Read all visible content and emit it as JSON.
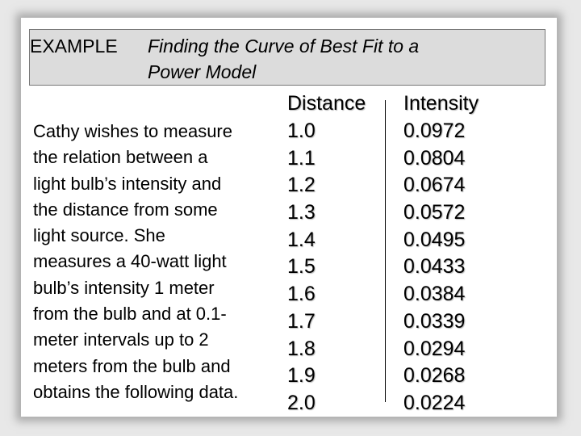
{
  "title": {
    "prefix": "EXAMPLE",
    "line1": "Finding the Curve of Best Fit to a",
    "line2": "Power Model"
  },
  "description_lines": [
    "Cathy wishes to measure",
    "the relation between a",
    "light bulb’s intensity and",
    "the distance from some",
    "light source.  She",
    "measures a 40-watt light",
    "bulb’s intensity 1 meter",
    "from the bulb and at 0.1-",
    "meter intervals up to 2",
    "meters from the bulb and",
    "obtains the following data."
  ],
  "table": {
    "headers": {
      "distance": "Distance",
      "intensity": "Intensity"
    },
    "rows": [
      {
        "distance": "1.0",
        "intensity": "0.0972"
      },
      {
        "distance": "1.1",
        "intensity": "0.0804"
      },
      {
        "distance": "1.2",
        "intensity": "0.0674"
      },
      {
        "distance": "1.3",
        "intensity": "0.0572"
      },
      {
        "distance": "1.4",
        "intensity": "0.0495"
      },
      {
        "distance": "1.5",
        "intensity": "0.0433"
      },
      {
        "distance": "1.6",
        "intensity": "0.0384"
      },
      {
        "distance": "1.7",
        "intensity": "0.0339"
      },
      {
        "distance": "1.8",
        "intensity": "0.0294"
      },
      {
        "distance": "1.9",
        "intensity": "0.0268"
      },
      {
        "distance": "2.0",
        "intensity": "0.0224"
      }
    ]
  }
}
